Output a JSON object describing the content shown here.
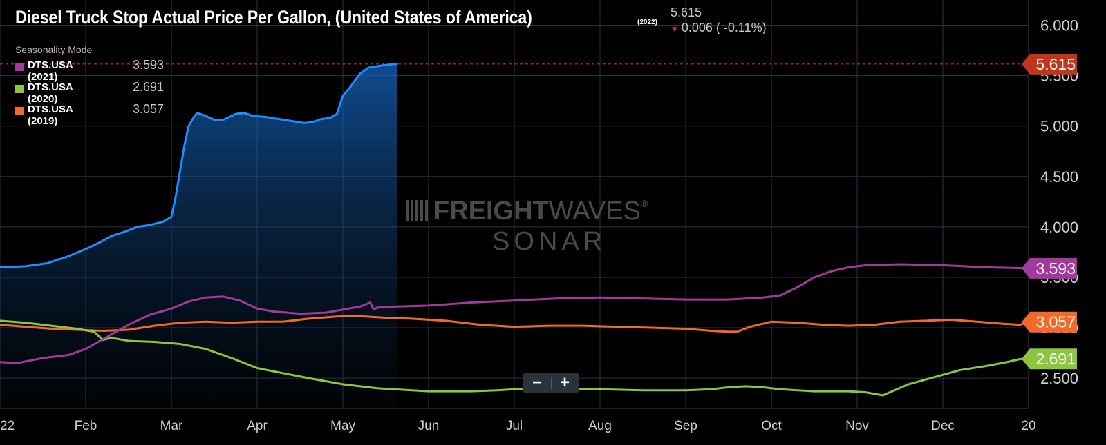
{
  "header": {
    "title": "Diesel Truck Stop Actual Price Per Gallon, (United States of America)",
    "year_tag": "(2022)",
    "last_value": "5.615",
    "change_text": "0.006 ( -0.11%)"
  },
  "legend": {
    "mode_label": "Seasonality Mode",
    "items": [
      {
        "name": "DTS.USA (2021)",
        "value": "3.593",
        "color": "#a2399c"
      },
      {
        "name": "DTS.USA (2020)",
        "value": "2.691",
        "color": "#8cc63f"
      },
      {
        "name": "DTS.USA (2019)",
        "value": "3.057",
        "color": "#f26a2a"
      }
    ]
  },
  "watermark": {
    "line1_bold": "FREIGHT",
    "line1_light": "WAVES",
    "line1_mark": "®",
    "line2": "SONAR"
  },
  "zoom": {
    "minus": "−",
    "plus": "+"
  },
  "chart_data": {
    "type": "line",
    "title": "Diesel Truck Stop Actual Price Per Gallon, (United States of America)",
    "x_unit": "month of year",
    "xlim": [
      0,
      12
    ],
    "ylim": [
      2.2,
      6.25
    ],
    "y_ticks": [
      "2.500",
      "3.000",
      "3.500",
      "4.000",
      "4.500",
      "5.000",
      "5.500",
      "6.000"
    ],
    "y_tick_values": [
      2.5,
      3.0,
      3.5,
      4.0,
      4.5,
      5.0,
      5.5,
      6.0
    ],
    "x_ticks": [
      "22",
      "Feb",
      "Mar",
      "Apr",
      "May",
      "Jun",
      "Jul",
      "Aug",
      "Sep",
      "Oct",
      "Nov",
      "Dec",
      "20"
    ],
    "x_tick_values": [
      0,
      1,
      2,
      3,
      4,
      5,
      6,
      7,
      8,
      9,
      10,
      11,
      12
    ],
    "grid": true,
    "reference_line": {
      "value": 5.615,
      "color": "#c0392b"
    },
    "series": [
      {
        "name": "DTS.USA (2022)",
        "color": "#1e8fff",
        "fill": true,
        "end_label": "5.615",
        "x": [
          0,
          0.3,
          0.55,
          0.8,
          1.0,
          1.15,
          1.3,
          1.45,
          1.6,
          1.75,
          1.9,
          2.0,
          2.05,
          2.1,
          2.15,
          2.2,
          2.27,
          2.3,
          2.4,
          2.5,
          2.6,
          2.75,
          2.85,
          2.95,
          3.1,
          3.25,
          3.4,
          3.55,
          3.65,
          3.75,
          3.85,
          3.93,
          4.0,
          4.08,
          4.2,
          4.3,
          4.45,
          4.6,
          4.63
        ],
        "y": [
          3.6,
          3.61,
          3.64,
          3.71,
          3.78,
          3.84,
          3.91,
          3.95,
          4.0,
          4.02,
          4.05,
          4.1,
          4.3,
          4.55,
          4.8,
          5.0,
          5.1,
          5.13,
          5.1,
          5.06,
          5.06,
          5.12,
          5.13,
          5.1,
          5.09,
          5.07,
          5.05,
          5.03,
          5.04,
          5.07,
          5.08,
          5.12,
          5.3,
          5.38,
          5.52,
          5.58,
          5.6,
          5.615,
          5.615
        ]
      },
      {
        "name": "DTS.USA (2021)",
        "color": "#a2399c",
        "fill": false,
        "end_label": "3.593",
        "x": [
          0,
          0.2,
          0.5,
          0.8,
          1.0,
          1.25,
          1.5,
          1.75,
          2.0,
          2.2,
          2.4,
          2.6,
          2.8,
          3.0,
          3.2,
          3.5,
          3.8,
          4.0,
          4.2,
          4.32,
          4.36,
          4.4,
          4.6,
          5.0,
          5.5,
          6.0,
          6.5,
          7.0,
          7.5,
          8.0,
          8.5,
          8.9,
          9.1,
          9.3,
          9.5,
          9.7,
          9.9,
          10.1,
          10.5,
          11.0,
          11.5,
          12.0
        ],
        "y": [
          2.66,
          2.65,
          2.7,
          2.73,
          2.79,
          2.91,
          3.03,
          3.13,
          3.19,
          3.26,
          3.3,
          3.31,
          3.27,
          3.19,
          3.16,
          3.14,
          3.15,
          3.18,
          3.21,
          3.25,
          3.18,
          3.2,
          3.21,
          3.22,
          3.25,
          3.27,
          3.29,
          3.3,
          3.29,
          3.28,
          3.28,
          3.3,
          3.32,
          3.4,
          3.5,
          3.56,
          3.6,
          3.62,
          3.63,
          3.62,
          3.6,
          3.59
        ]
      },
      {
        "name": "DTS.USA (2020)",
        "color": "#8cc63f",
        "fill": false,
        "end_label": "2.691",
        "x": [
          0,
          0.3,
          0.6,
          0.9,
          1.1,
          1.2,
          1.3,
          1.5,
          1.8,
          2.1,
          2.4,
          2.7,
          3.0,
          3.3,
          3.6,
          3.8,
          4.0,
          4.2,
          4.4,
          4.6,
          5.0,
          5.5,
          5.8,
          6.2,
          6.6,
          7.0,
          7.5,
          8.0,
          8.3,
          8.5,
          8.7,
          8.9,
          9.1,
          9.3,
          9.5,
          9.7,
          9.9,
          10.1,
          10.3,
          10.6,
          10.9,
          11.2,
          11.5,
          11.75,
          11.9,
          12.0
        ],
        "y": [
          3.07,
          3.05,
          3.02,
          2.99,
          2.96,
          2.88,
          2.9,
          2.87,
          2.86,
          2.84,
          2.79,
          2.7,
          2.6,
          2.55,
          2.5,
          2.47,
          2.44,
          2.42,
          2.4,
          2.39,
          2.37,
          2.37,
          2.38,
          2.4,
          2.39,
          2.39,
          2.38,
          2.38,
          2.39,
          2.41,
          2.42,
          2.41,
          2.39,
          2.38,
          2.37,
          2.37,
          2.37,
          2.36,
          2.33,
          2.44,
          2.51,
          2.58,
          2.62,
          2.66,
          2.69,
          2.691
        ]
      },
      {
        "name": "DTS.USA (2019)",
        "color": "#f26a2a",
        "fill": false,
        "end_label": "3.057",
        "x": [
          0,
          0.3,
          0.6,
          0.9,
          1.2,
          1.5,
          1.8,
          2.1,
          2.4,
          2.7,
          3.0,
          3.3,
          3.6,
          3.9,
          4.1,
          4.3,
          4.5,
          4.8,
          5.2,
          5.6,
          6.0,
          6.4,
          6.8,
          7.2,
          7.6,
          8.0,
          8.3,
          8.5,
          8.6,
          8.75,
          9.0,
          9.3,
          9.6,
          9.9,
          10.2,
          10.5,
          10.8,
          11.1,
          11.4,
          11.7,
          11.9,
          12.0
        ],
        "y": [
          3.03,
          3.01,
          2.99,
          2.98,
          2.97,
          2.98,
          3.02,
          3.05,
          3.06,
          3.05,
          3.06,
          3.06,
          3.09,
          3.11,
          3.12,
          3.11,
          3.1,
          3.09,
          3.07,
          3.03,
          3.01,
          3.02,
          3.02,
          3.01,
          3.0,
          2.99,
          2.97,
          2.96,
          2.96,
          3.01,
          3.06,
          3.05,
          3.03,
          3.02,
          3.03,
          3.06,
          3.07,
          3.08,
          3.06,
          3.04,
          3.03,
          3.057
        ]
      }
    ]
  }
}
